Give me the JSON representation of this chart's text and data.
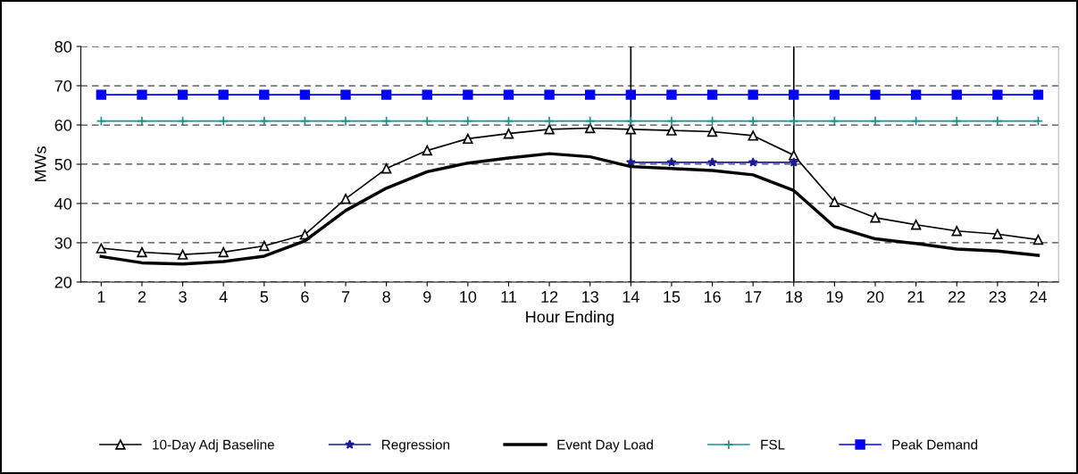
{
  "chart_data": {
    "type": "line",
    "xlabel": "Hour Ending",
    "ylabel": "MWs",
    "categories": [
      "1",
      "2",
      "3",
      "4",
      "5",
      "6",
      "7",
      "8",
      "9",
      "10",
      "11",
      "12",
      "13",
      "14",
      "15",
      "16",
      "17",
      "18",
      "19",
      "20",
      "21",
      "22",
      "23",
      "24"
    ],
    "series": [
      {
        "name": "10-Day Adj Baseline",
        "color": "#000000",
        "marker": "triangle",
        "values": [
          28.6,
          27.6,
          27.0,
          27.6,
          29.2,
          32.1,
          41.2,
          48.9,
          53.5,
          56.5,
          57.8,
          58.9,
          59.2,
          58.9,
          58.6,
          58.3,
          57.3,
          52.3,
          40.4,
          36.4,
          34.6,
          33.0,
          32.2,
          30.8
        ]
      },
      {
        "name": "Regression",
        "color": "#1a1a99",
        "marker": "star",
        "values": [
          null,
          null,
          null,
          null,
          null,
          null,
          null,
          null,
          null,
          null,
          null,
          null,
          null,
          50.5,
          50.5,
          50.5,
          50.5,
          50.5,
          null,
          null,
          null,
          null,
          null,
          null
        ]
      },
      {
        "name": "Event Day Load",
        "color": "#000000",
        "marker": "none",
        "values": [
          26.5,
          24.9,
          24.6,
          25.2,
          26.6,
          30.5,
          38.2,
          43.9,
          48.1,
          50.3,
          51.6,
          52.7,
          51.9,
          49.4,
          48.9,
          48.4,
          47.3,
          43.3,
          34.1,
          31.0,
          29.8,
          28.4,
          27.9,
          26.8
        ]
      },
      {
        "name": "FSL",
        "color": "#1a9090",
        "marker": "cross",
        "values": [
          61,
          61,
          61,
          61,
          61,
          61,
          61,
          61,
          61,
          61,
          61,
          61,
          61,
          61,
          61,
          61,
          61,
          61,
          61,
          61,
          61,
          61,
          61,
          61
        ]
      },
      {
        "name": "Peak Demand",
        "color": "#0000ff",
        "marker": "square",
        "values": [
          67.7,
          67.7,
          67.7,
          67.7,
          67.7,
          67.7,
          67.7,
          67.7,
          67.7,
          67.7,
          67.7,
          67.7,
          67.7,
          67.7,
          67.7,
          67.7,
          67.7,
          67.7,
          67.7,
          67.7,
          67.7,
          67.7,
          67.7,
          67.7
        ]
      }
    ],
    "ylim": [
      20,
      80
    ],
    "yticks": [
      20,
      30,
      40,
      50,
      60,
      70,
      80
    ],
    "grid": "y",
    "legend": "bottom",
    "line_style": "solid",
    "ref_lines": [
      {
        "axis": "x",
        "value": "14",
        "color": "#000000"
      },
      {
        "axis": "x",
        "value": "18",
        "color": "#000000"
      }
    ]
  }
}
